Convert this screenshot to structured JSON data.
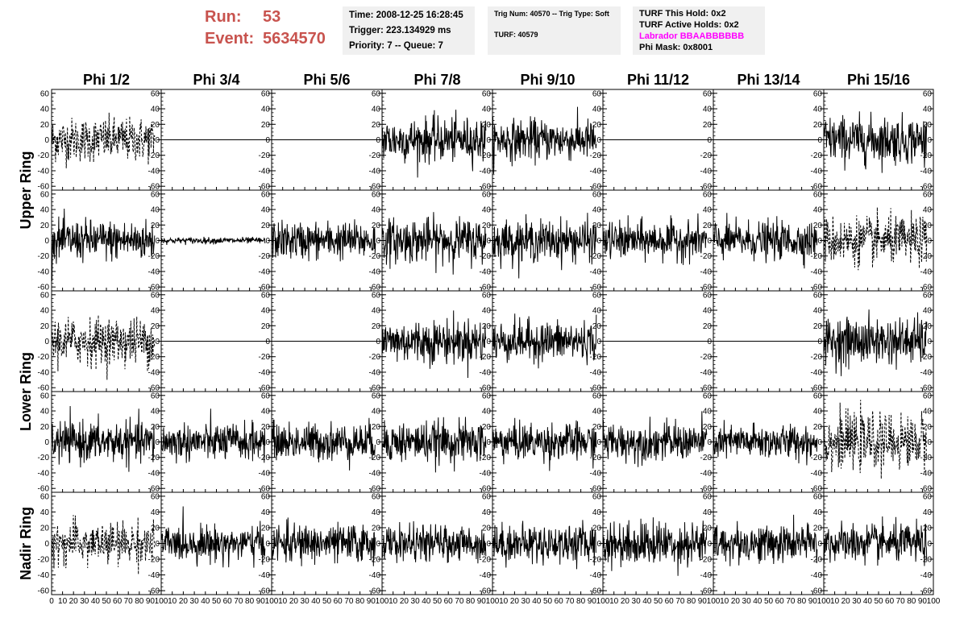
{
  "header": {
    "run_label": "Run:",
    "run_value": "53",
    "event_label": "Event:",
    "event_value": "5634570",
    "time": "Time: 2008-12-25 16:28:45",
    "trigger": "Trigger: 223.134929 ms",
    "priority": "Priority: 7 -- Queue: 7",
    "trig_num": "Trig Num: 40570 -- Trig Type: Soft",
    "turf": "TURF: 40579",
    "turf_this_hold": "TURF This Hold: 0x2",
    "turf_active_holds": "TURF Active Holds: 0x2",
    "labrador": "Labrador BBAABBBBBB",
    "phi_mask": "Phi Mask: 0x8001",
    "accent_color": "#c8534e",
    "labrador_color": "#ff00ff"
  },
  "chart_data": {
    "type": "line",
    "columns": [
      "Phi 1/2",
      "Phi 3/4",
      "Phi 5/6",
      "Phi 7/8",
      "Phi 9/10",
      "Phi 11/12",
      "Phi 13/14",
      "Phi 15/16"
    ],
    "ring_labels": [
      {
        "text": "Upper Ring",
        "rows": [
          0,
          1
        ]
      },
      {
        "text": "Lower Ring",
        "rows": [
          2,
          3
        ]
      },
      {
        "text": "Nadir Ring",
        "rows": [
          4
        ]
      }
    ],
    "y_ticks": [
      "60",
      "40",
      "20",
      "0",
      "-20",
      "-40",
      "-60"
    ],
    "y_tick_values": [
      60,
      40,
      20,
      0,
      -20,
      -40,
      -60
    ],
    "ylim": [
      -65,
      65
    ],
    "xlim": [
      0,
      100
    ],
    "x_tick_labels": [
      "0",
      "10",
      "20",
      "30",
      "40",
      "50",
      "60",
      "70",
      "80",
      "90",
      "100"
    ],
    "x_tick_values": [
      0,
      10,
      20,
      30,
      40,
      50,
      60,
      70,
      80,
      90,
      100
    ],
    "samples_per_trace": 260,
    "trace_x_end": 94,
    "panels": [
      [
        {
          "style": "dashed",
          "amplitude": 14
        },
        {
          "style": "flat",
          "amplitude": 0
        },
        {
          "style": "flat",
          "amplitude": 0
        },
        {
          "style": "solid",
          "amplitude": 14
        },
        {
          "style": "solid",
          "amplitude": 13
        },
        {
          "style": "flat",
          "amplitude": 0
        },
        {
          "style": "flat",
          "amplitude": 0
        },
        {
          "style": "solid",
          "amplitude": 15
        }
      ],
      [
        {
          "style": "solid",
          "amplitude": 13
        },
        {
          "style": "solid",
          "amplitude": 2
        },
        {
          "style": "solid",
          "amplitude": 12
        },
        {
          "style": "solid",
          "amplitude": 14
        },
        {
          "style": "solid",
          "amplitude": 13
        },
        {
          "style": "solid",
          "amplitude": 12
        },
        {
          "style": "solid",
          "amplitude": 12
        },
        {
          "style": "dashed",
          "amplitude": 15
        }
      ],
      [
        {
          "style": "dashed",
          "amplitude": 15
        },
        {
          "style": "flat",
          "amplitude": 0
        },
        {
          "style": "flat",
          "amplitude": 0
        },
        {
          "style": "solid",
          "amplitude": 14
        },
        {
          "style": "solid",
          "amplitude": 13
        },
        {
          "style": "flat",
          "amplitude": 0
        },
        {
          "style": "flat",
          "amplitude": 0
        },
        {
          "style": "solid",
          "amplitude": 15
        }
      ],
      [
        {
          "style": "solid",
          "amplitude": 13
        },
        {
          "style": "solid",
          "amplitude": 12
        },
        {
          "style": "solid",
          "amplitude": 12
        },
        {
          "style": "solid",
          "amplitude": 13
        },
        {
          "style": "solid",
          "amplitude": 12
        },
        {
          "style": "solid",
          "amplitude": 12
        },
        {
          "style": "solid",
          "amplitude": 11
        },
        {
          "style": "dashed",
          "amplitude": 17
        }
      ],
      [
        {
          "style": "dashed",
          "amplitude": 13
        },
        {
          "style": "solid",
          "amplitude": 11
        },
        {
          "style": "solid",
          "amplitude": 12
        },
        {
          "style": "solid",
          "amplitude": 11
        },
        {
          "style": "solid",
          "amplitude": 12
        },
        {
          "style": "solid",
          "amplitude": 14
        },
        {
          "style": "solid",
          "amplitude": 12
        },
        {
          "style": "solid",
          "amplitude": 12
        }
      ]
    ]
  }
}
